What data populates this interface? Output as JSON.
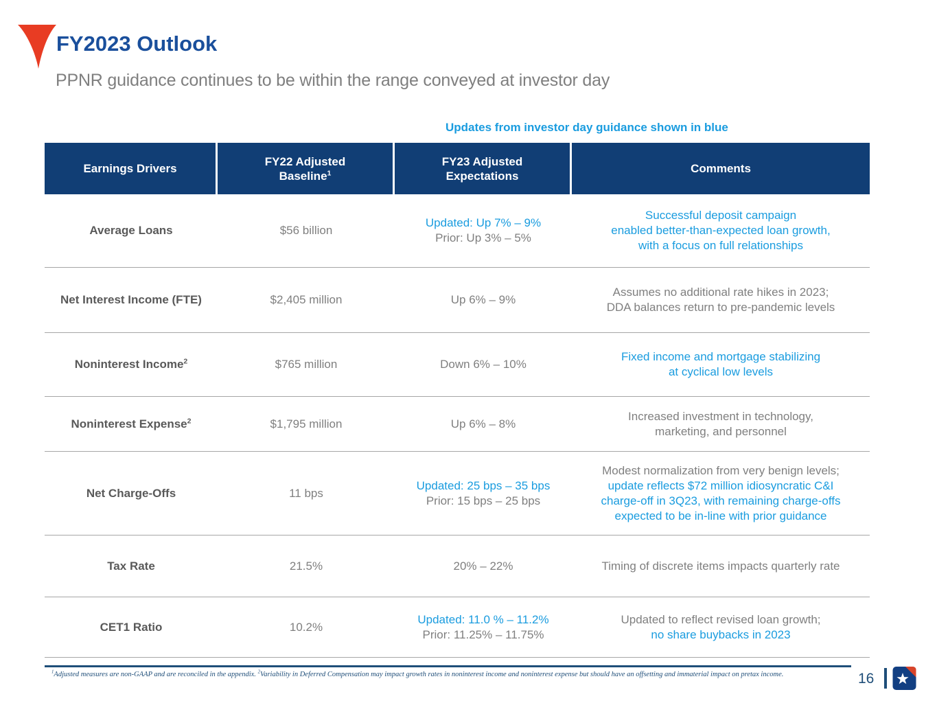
{
  "page": {
    "title": "FY2023 Outlook",
    "subtitle": "PPNR guidance continues to be within the range conveyed at investor day",
    "note": "Updates from investor day guidance shown in blue",
    "page_number": "16"
  },
  "colors": {
    "header_bg": "#113e75",
    "title_blue": "#1a4f9c",
    "accent_blue": "#1a9cdf",
    "text_gray": "#7f7f7f",
    "label_gray": "#595959",
    "footnote_blue": "#1f4e79",
    "logo_red": "#e83c23",
    "logo_navy": "#123f82"
  },
  "icons": {
    "pennant": "red-pennant-icon",
    "logo": "company-star-logo"
  },
  "table": {
    "headers": [
      {
        "line1": "Earnings Drivers",
        "line2": "",
        "sup": ""
      },
      {
        "line1": "FY22 Adjusted",
        "line2": "Baseline",
        "sup": "1"
      },
      {
        "line1": "FY23 Adjusted",
        "line2": "Expectations",
        "sup": ""
      },
      {
        "line1": "Comments",
        "line2": "",
        "sup": ""
      }
    ],
    "rows": [
      {
        "driver": "Average Loans",
        "driver_sup": "",
        "baseline": "$56 billion",
        "expectations": [
          {
            "text": "Updated: Up 7% – 9%",
            "blue": true
          },
          {
            "text": "Prior: Up 3% – 5%",
            "blue": false
          }
        ],
        "comments": [
          {
            "text": "Successful deposit campaign",
            "blue": true
          },
          {
            "text": "enabled better-than-expected loan growth,",
            "blue": true
          },
          {
            "text": "with a focus on full relationships",
            "blue": true
          }
        ]
      },
      {
        "driver": "Net Interest Income (FTE)",
        "driver_sup": "",
        "baseline": "$2,405 million",
        "expectations": [
          {
            "text": "Up 6% – 9%",
            "blue": false
          }
        ],
        "comments": [
          {
            "text": "Assumes no additional rate hikes in 2023;",
            "blue": false
          },
          {
            "text": "DDA balances return to pre-pandemic levels",
            "blue": false
          }
        ]
      },
      {
        "driver": "Noninterest Income",
        "driver_sup": "2",
        "baseline": "$765 million",
        "expectations": [
          {
            "text": "Down 6% – 10%",
            "blue": false
          }
        ],
        "comments": [
          {
            "text": "Fixed income and mortgage stabilizing",
            "blue": true
          },
          {
            "text": "at cyclical low levels",
            "blue": true
          }
        ]
      },
      {
        "driver": "Noninterest Expense",
        "driver_sup": "2",
        "baseline": "$1,795 million",
        "expectations": [
          {
            "text": "Up 6% – 8%",
            "blue": false
          }
        ],
        "comments": [
          {
            "text": "Increased investment in technology,",
            "blue": false
          },
          {
            "text": "marketing, and personnel",
            "blue": false
          }
        ]
      },
      {
        "driver": "Net Charge-Offs",
        "driver_sup": "",
        "baseline": "11 bps",
        "expectations": [
          {
            "text": "Updated: 25 bps – 35 bps",
            "blue": true
          },
          {
            "text": "Prior: 15 bps – 25 bps",
            "blue": false
          }
        ],
        "comments": [
          {
            "text": "Modest normalization from very benign levels;",
            "blue": false
          },
          {
            "text": "update reflects $72 million idiosyncratic C&I",
            "blue": true
          },
          {
            "text": "charge-off in 3Q23, with remaining charge-offs",
            "blue": true
          },
          {
            "text": "expected to be in-line with prior guidance",
            "blue": true
          }
        ]
      },
      {
        "driver": "Tax Rate",
        "driver_sup": "",
        "baseline": "21.5%",
        "expectations": [
          {
            "text": "20% – 22%",
            "blue": false
          }
        ],
        "comments": [
          {
            "text": "Timing of discrete items impacts quarterly rate",
            "blue": false
          }
        ]
      },
      {
        "driver": "CET1 Ratio",
        "driver_sup": "",
        "baseline": "10.2%",
        "expectations": [
          {
            "text": "Updated: 11.0 % – 11.2%",
            "blue": true
          },
          {
            "text": "Prior: 11.25% – 11.75%",
            "blue": false
          }
        ],
        "comments": [
          {
            "text": "Updated to reflect revised loan growth;",
            "blue": false
          },
          {
            "text": "no share buybacks in 2023",
            "blue": true
          }
        ]
      }
    ]
  },
  "footnote": {
    "sup1": "1",
    "text1": "Adjusted measures are non-GAAP and are reconciled in the appendix. ",
    "sup2": "2",
    "text2": "Variability in Deferred Compensation may impact growth rates in noninterest income and noninterest expense but should have an offsetting and immaterial impact on pretax income."
  }
}
